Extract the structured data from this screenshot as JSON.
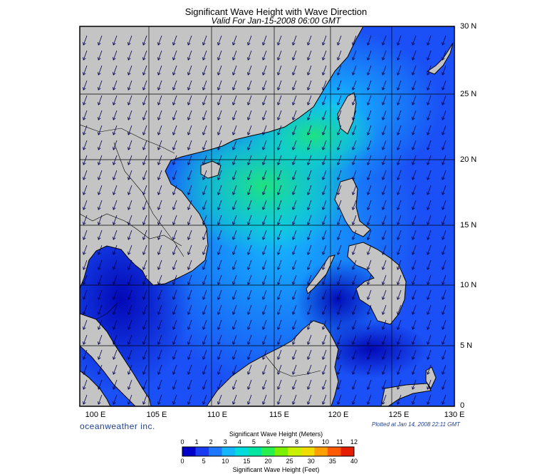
{
  "header": {
    "title": "Significant Wave Height with Wave Direction",
    "subtitle": "Valid For Jan-15-2008 06:00 GMT"
  },
  "map": {
    "lat_labels": [
      "30 N",
      "25 N",
      "20 N",
      "15 N",
      "10 N",
      "5 N",
      "0"
    ],
    "lon_labels": [
      "100 E",
      "105 E",
      "110 E",
      "115 E",
      "120 E",
      "125 E",
      "130 E"
    ],
    "land_color": "#c4c4c4",
    "wave_direction": "toward southwest"
  },
  "footer": {
    "brand": "oceanweather inc.",
    "plotted": "Plotted at Jan 14, 2008 22:11 GMT"
  },
  "colorbar": {
    "title_top": "Significant Wave Height (Meters)",
    "title_bottom": "Significant Wave Height (Feet)",
    "meter_ticks": [
      "0",
      "1",
      "2",
      "3",
      "4",
      "5",
      "6",
      "7",
      "8",
      "9",
      "10",
      "11",
      "12"
    ],
    "feet_ticks": [
      "0",
      "5",
      "10",
      "15",
      "20",
      "25",
      "30",
      "35",
      "40"
    ],
    "colors": [
      "#0000c8",
      "#1a3cf0",
      "#1e78ff",
      "#14b4ff",
      "#00dcdc",
      "#00e6a0",
      "#28f050",
      "#78f000",
      "#c8f000",
      "#f0dc00",
      "#ffa000",
      "#ff5a00",
      "#e61e00"
    ]
  }
}
